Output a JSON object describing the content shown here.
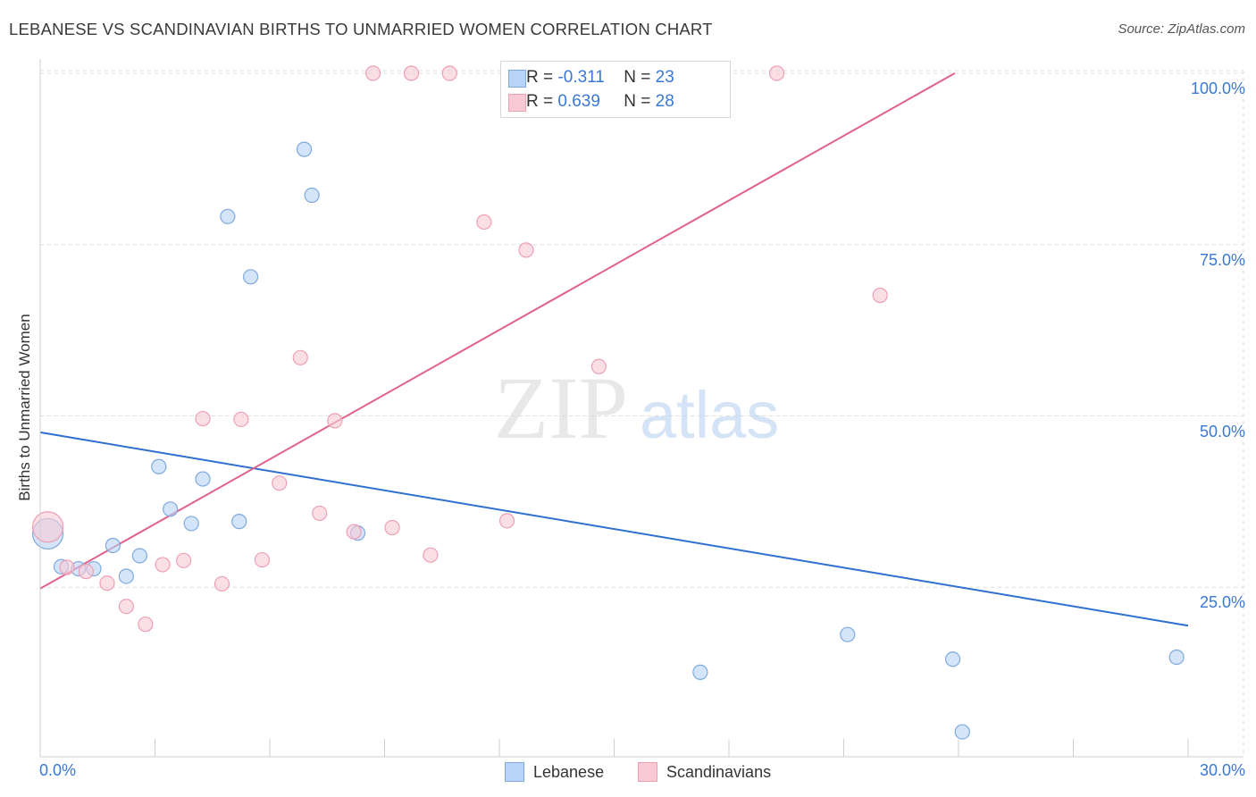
{
  "header": {
    "title": "LEBANESE VS SCANDINAVIAN BIRTHS TO UNMARRIED WOMEN CORRELATION CHART",
    "source": "Source: ZipAtlas.com"
  },
  "watermark": {
    "zip": "ZIP",
    "atlas": "atlas"
  },
  "legend_stats": [
    {
      "r_label": "R =",
      "r_value": "-0.311",
      "n_label": "N =",
      "n_value": "23"
    },
    {
      "r_label": "R =",
      "r_value": "0.639",
      "n_label": "N =",
      "n_value": "28"
    }
  ],
  "colors": {
    "lebanese_fill": "#b7d3f5",
    "lebanese_stroke": "#7fa9de",
    "lebanese_line": "#2f6fd0",
    "scandinavian_fill": "#f9c9d6",
    "scandinavian_stroke": "#ee9fb4",
    "scandinavian_line": "#e0628a",
    "tick_text": "#3a78d4",
    "grid": "#dcdcdc"
  },
  "chart_data": {
    "type": "scatter",
    "title": "LEBANESE VS SCANDINAVIAN BIRTHS TO UNMARRIED WOMEN CORRELATION CHART",
    "xlabel": "",
    "ylabel": "Births to Unmarried Women",
    "xlim": [
      0,
      30
    ],
    "ylim": [
      0,
      102.5
    ],
    "x_tick_labels": [
      "0.0%",
      "30.0%"
    ],
    "y_ticks": [
      {
        "value": 25,
        "label": "25.0%"
      },
      {
        "value": 50,
        "label": "50.0%"
      },
      {
        "value": 75,
        "label": "75.0%"
      },
      {
        "value": 100,
        "label": "100.0%"
      }
    ],
    "grid": true,
    "legend_position": "bottom",
    "series": [
      {
        "name": "Lebanese",
        "r": -0.311,
        "n": 23,
        "trend": {
          "x": [
            0,
            30
          ],
          "y": [
            47.6,
            19.4
          ]
        },
        "points": [
          {
            "x": 0.2,
            "y": 32.8,
            "big": true
          },
          {
            "x": 0.55,
            "y": 28.0
          },
          {
            "x": 1.0,
            "y": 27.7
          },
          {
            "x": 1.4,
            "y": 27.7
          },
          {
            "x": 1.9,
            "y": 31.1
          },
          {
            "x": 2.25,
            "y": 26.6
          },
          {
            "x": 2.6,
            "y": 29.6
          },
          {
            "x": 3.1,
            "y": 42.6
          },
          {
            "x": 3.4,
            "y": 36.4
          },
          {
            "x": 3.95,
            "y": 34.3
          },
          {
            "x": 4.25,
            "y": 40.8
          },
          {
            "x": 4.9,
            "y": 79.1
          },
          {
            "x": 5.2,
            "y": 34.6
          },
          {
            "x": 5.5,
            "y": 70.3
          },
          {
            "x": 6.9,
            "y": 88.9
          },
          {
            "x": 7.1,
            "y": 82.2
          },
          {
            "x": 8.3,
            "y": 32.9
          },
          {
            "x": 12.85,
            "y": 100.0
          },
          {
            "x": 17.25,
            "y": 12.6
          },
          {
            "x": 21.1,
            "y": 18.1
          },
          {
            "x": 23.85,
            "y": 14.5
          },
          {
            "x": 24.1,
            "y": 3.9
          },
          {
            "x": 29.7,
            "y": 14.8
          }
        ]
      },
      {
        "name": "Scandinavians",
        "r": 0.639,
        "n": 28,
        "trend": {
          "x": [
            0,
            23.9
          ],
          "y": [
            24.8,
            100.0
          ]
        },
        "points": [
          {
            "x": 0.2,
            "y": 33.8,
            "big": true
          },
          {
            "x": 0.7,
            "y": 27.9
          },
          {
            "x": 1.2,
            "y": 27.3
          },
          {
            "x": 1.75,
            "y": 25.6
          },
          {
            "x": 2.25,
            "y": 22.2
          },
          {
            "x": 2.75,
            "y": 19.6
          },
          {
            "x": 3.2,
            "y": 28.3
          },
          {
            "x": 3.75,
            "y": 28.9
          },
          {
            "x": 4.25,
            "y": 49.6
          },
          {
            "x": 4.75,
            "y": 25.5
          },
          {
            "x": 5.25,
            "y": 49.5
          },
          {
            "x": 5.8,
            "y": 29.0
          },
          {
            "x": 6.25,
            "y": 40.2
          },
          {
            "x": 6.8,
            "y": 58.5
          },
          {
            "x": 7.3,
            "y": 35.8
          },
          {
            "x": 7.7,
            "y": 49.3
          },
          {
            "x": 8.2,
            "y": 33.1
          },
          {
            "x": 8.7,
            "y": 100.0
          },
          {
            "x": 9.2,
            "y": 33.7
          },
          {
            "x": 9.7,
            "y": 100.0
          },
          {
            "x": 10.2,
            "y": 29.7
          },
          {
            "x": 10.7,
            "y": 100.0
          },
          {
            "x": 11.6,
            "y": 78.3
          },
          {
            "x": 12.2,
            "y": 34.7
          },
          {
            "x": 12.7,
            "y": 74.2
          },
          {
            "x": 14.6,
            "y": 57.2
          },
          {
            "x": 19.25,
            "y": 100.0
          },
          {
            "x": 21.95,
            "y": 67.6
          }
        ]
      }
    ]
  }
}
